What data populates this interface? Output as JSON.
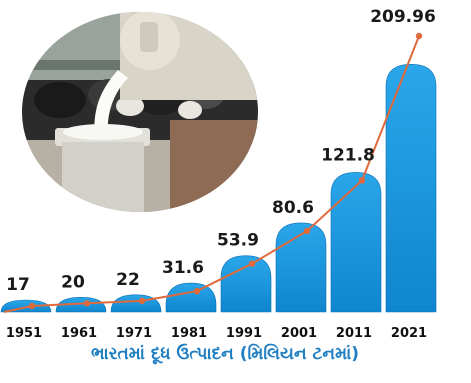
{
  "chart_data": {
    "type": "bar",
    "categories": [
      "1951",
      "1961",
      "1971",
      "1981",
      "1991",
      "2001",
      "2011",
      "2021"
    ],
    "values": [
      17,
      20,
      22,
      31.6,
      53.9,
      80.6,
      121.8,
      209.96
    ],
    "value_labels": [
      "17",
      "20",
      "22",
      "31.6",
      "53.9",
      "80.6",
      "121.8",
      "209.96"
    ],
    "title": "ભારતમાં દૂધ ઉત્પાદન (મિલિયન ટનમાં)",
    "overlay_line": true,
    "colors": {
      "bar": "#1e9be0",
      "bar_edge": "#0d6fb3",
      "line": "#e06a3b"
    }
  },
  "illustration": {
    "icon": "milk-pouring-photo-icon"
  }
}
